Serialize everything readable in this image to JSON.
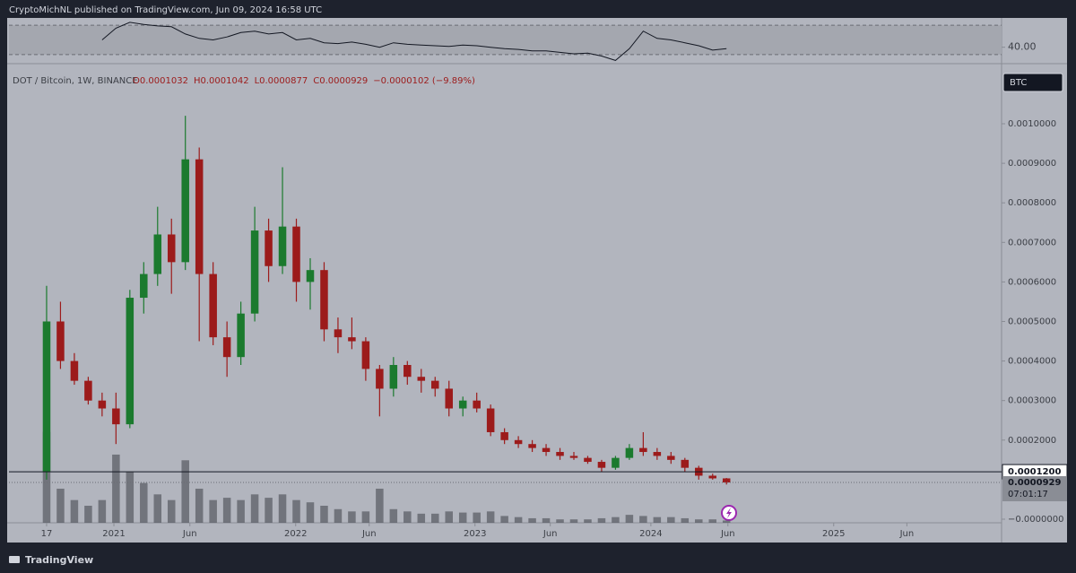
{
  "header": {
    "published": "CryptoMichNL published on TradingView.com, Jun 09, 2024 16:58 UTC"
  },
  "footer": {
    "brand": "TradingView"
  },
  "chart_data": [
    {
      "type": "candlestick",
      "title": "DOT / Bitcoin, 1W, BINANCE",
      "legend_text": [
        "O0.0001032",
        "H0.0001042",
        "L0.0000877",
        "C0.0000929",
        "−0.0000102 (−9.89%)"
      ],
      "currency": "BTC",
      "x": [
        0,
        4,
        8,
        12,
        16,
        20,
        24,
        28,
        32,
        36,
        40,
        44,
        48,
        52,
        56,
        60,
        64,
        68,
        72,
        76,
        80,
        84,
        88,
        92,
        96,
        100,
        104,
        108,
        112,
        116,
        120,
        124,
        128,
        132,
        136,
        140,
        144,
        148,
        152,
        156,
        160,
        164,
        168,
        172,
        176,
        180,
        184,
        188,
        192,
        196
      ],
      "open": [
        0.00012,
        0.0005,
        0.0004,
        0.00035,
        0.0003,
        0.00028,
        0.00024,
        0.00056,
        0.00062,
        0.00072,
        0.00065,
        0.00091,
        0.00062,
        0.00046,
        0.00041,
        0.00052,
        0.00073,
        0.00064,
        0.00074,
        0.0006,
        0.00063,
        0.00048,
        0.00046,
        0.00045,
        0.00038,
        0.00033,
        0.00039,
        0.00036,
        0.00035,
        0.00033,
        0.00028,
        0.0003,
        0.00028,
        0.00022,
        0.0002,
        0.00019,
        0.00018,
        0.00017,
        0.00016,
        0.000155,
        0.000145,
        0.00013,
        0.000155,
        0.00018,
        0.00017,
        0.00016,
        0.00015,
        0.00013,
        0.00011,
        0.0001032
      ],
      "high": [
        0.00059,
        0.00055,
        0.00042,
        0.00036,
        0.00032,
        0.00032,
        0.00058,
        0.00065,
        0.00079,
        0.00076,
        0.00102,
        0.00094,
        0.00065,
        0.0005,
        0.00055,
        0.00079,
        0.00076,
        0.00089,
        0.00076,
        0.00066,
        0.00065,
        0.00051,
        0.00051,
        0.00046,
        0.00039,
        0.00041,
        0.0004,
        0.00038,
        0.00036,
        0.00035,
        0.00031,
        0.00032,
        0.00029,
        0.00023,
        0.00021,
        0.0002,
        0.00019,
        0.00018,
        0.00017,
        0.00016,
        0.00015,
        0.00016,
        0.00019,
        0.00022,
        0.00018,
        0.00017,
        0.000155,
        0.000135,
        0.000115,
        0.0001042
      ],
      "low": [
        0.0001,
        0.00038,
        0.00034,
        0.00029,
        0.00026,
        0.00019,
        0.00023,
        0.00052,
        0.00059,
        0.00057,
        0.00063,
        0.00045,
        0.00044,
        0.00036,
        0.00039,
        0.0005,
        0.0006,
        0.00062,
        0.00055,
        0.00053,
        0.00045,
        0.00042,
        0.00043,
        0.00035,
        0.00026,
        0.00031,
        0.00034,
        0.00032,
        0.00031,
        0.00026,
        0.00026,
        0.00027,
        0.00021,
        0.00019,
        0.00018,
        0.00017,
        0.00016,
        0.00015,
        0.00015,
        0.00014,
        0.00012,
        0.000125,
        0.00015,
        0.00016,
        0.00015,
        0.00014,
        0.00012,
        0.0001,
        0.0001,
        8.77e-05
      ],
      "close": [
        0.0005,
        0.0004,
        0.00035,
        0.0003,
        0.00028,
        0.00024,
        0.00056,
        0.00062,
        0.00072,
        0.00065,
        0.00091,
        0.00062,
        0.00046,
        0.00041,
        0.00052,
        0.00073,
        0.00064,
        0.00074,
        0.0006,
        0.00063,
        0.00048,
        0.00046,
        0.00045,
        0.00038,
        0.00033,
        0.00039,
        0.00036,
        0.00035,
        0.00033,
        0.00028,
        0.0003,
        0.00028,
        0.00022,
        0.0002,
        0.00019,
        0.00018,
        0.00017,
        0.00016,
        0.000155,
        0.000145,
        0.00013,
        0.000155,
        0.00018,
        0.00017,
        0.00016,
        0.00015,
        0.00013,
        0.00011,
        0.0001032,
        9.29e-05
      ],
      "volume": [
        80,
        30,
        20,
        15,
        20,
        60,
        45,
        35,
        25,
        20,
        55,
        30,
        20,
        22,
        20,
        25,
        22,
        25,
        20,
        18,
        15,
        12,
        10,
        10,
        30,
        12,
        10,
        8,
        8,
        10,
        9,
        9,
        10,
        6,
        5,
        4,
        4,
        3,
        3,
        3,
        4,
        5,
        7,
        6,
        5,
        5,
        4,
        3,
        3,
        2
      ],
      "up_color": "#1b7a2e",
      "down_color": "#9c1b1b",
      "volume_color": "#55585f",
      "xlim": [
        -10.85,
        275.3
      ],
      "xticks": [
        {
          "value": 0,
          "label": "17"
        },
        {
          "value": 19.4,
          "label": "2021"
        },
        {
          "value": 41.3,
          "label": "Jun"
        },
        {
          "value": 71.8,
          "label": "2022"
        },
        {
          "value": 93,
          "label": "Jun"
        },
        {
          "value": 123.5,
          "label": "2023"
        },
        {
          "value": 145.2,
          "label": "Jun"
        },
        {
          "value": 174.2,
          "label": "2024"
        },
        {
          "value": 196.4,
          "label": "Jun"
        },
        {
          "value": 226.9,
          "label": "2025"
        },
        {
          "value": 248,
          "label": "Jun"
        }
      ],
      "ylim": [
        -9.1e-06,
        0.0011406
      ],
      "yticks": [
        {
          "value": 0.001,
          "label": "0.0010000"
        },
        {
          "value": 0.0009,
          "label": "0.0009000"
        },
        {
          "value": 0.0008,
          "label": "0.0008000"
        },
        {
          "value": 0.0007,
          "label": "0.0007000"
        },
        {
          "value": 0.0006,
          "label": "0.0006000"
        },
        {
          "value": 0.0005,
          "label": "0.0005000"
        },
        {
          "value": 0.0004,
          "label": "0.0004000"
        },
        {
          "value": 0.0003,
          "label": "0.0003000"
        },
        {
          "value": 0.0002,
          "label": "0.0002000"
        },
        {
          "value": 0,
          "label": "−0.0000000"
        }
      ],
      "y2lim": [
        0,
        400
      ],
      "price_line": {
        "value": 0.00012,
        "label": "0.0001200"
      },
      "last_price": {
        "value": 9.29e-05,
        "label": "0.0000929",
        "countdown": "07:01:17"
      },
      "grid": false
    },
    {
      "type": "line",
      "x": [
        0,
        4,
        8,
        12,
        16,
        20,
        24,
        28,
        32,
        36,
        40,
        44,
        48,
        52,
        56,
        60,
        64,
        68,
        72,
        76,
        80,
        84,
        88,
        92,
        96,
        100,
        104,
        108,
        112,
        116,
        120,
        124,
        128,
        132,
        136,
        140,
        144,
        148,
        152,
        156,
        160,
        164,
        168,
        172,
        176,
        180,
        184,
        188,
        192,
        196
      ],
      "values": [
        null,
        null,
        null,
        null,
        50,
        66,
        74,
        71,
        69,
        68,
        58,
        52,
        50,
        54,
        60,
        62,
        58,
        60,
        50,
        52,
        46,
        45,
        47,
        44,
        40,
        46,
        44,
        43,
        42,
        41,
        43,
        42,
        40,
        38,
        37,
        35,
        35,
        33,
        31,
        32,
        28,
        22,
        38,
        62,
        52,
        50,
        46,
        42,
        36,
        38
      ],
      "color": "#131722",
      "bands": [
        70,
        30
      ],
      "ylim": [
        20,
        77.5
      ],
      "yticks": [
        {
          "value": 40,
          "label": "40.00"
        }
      ]
    }
  ]
}
